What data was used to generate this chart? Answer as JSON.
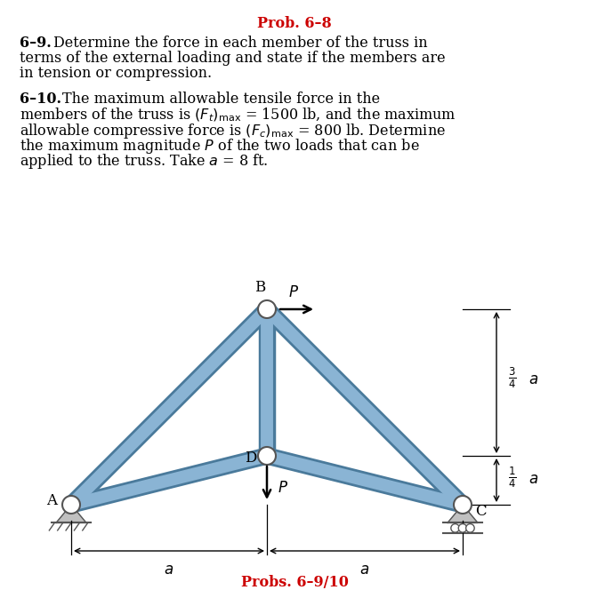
{
  "title": "Prob. 6–8",
  "subtitle": "Probs. 6–9/10",
  "member_color": "#8ab4d4",
  "member_edge_color": "#4a7a9b",
  "background_color": "#ffffff",
  "title_color": "#cc0000",
  "text_color": "#000000",
  "A": [
    0.0,
    0.0
  ],
  "B": [
    1.0,
    1.0
  ],
  "C": [
    2.0,
    0.0
  ],
  "D": [
    1.0,
    0.25
  ],
  "fig_width": 6.62,
  "fig_height": 6.73
}
